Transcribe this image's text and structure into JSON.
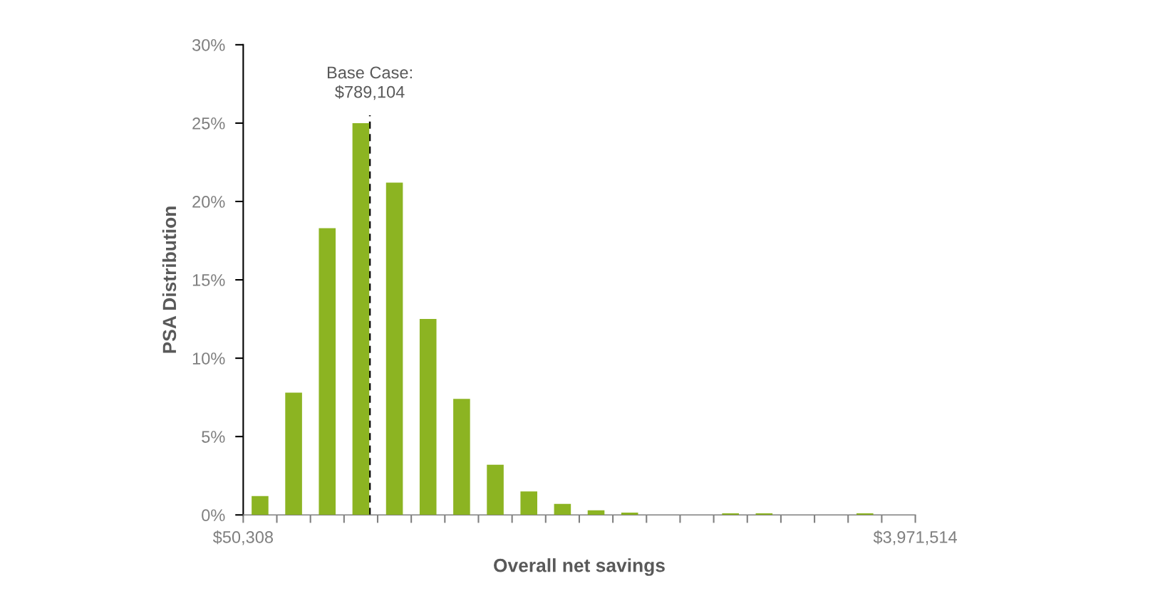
{
  "chart_data": {
    "type": "histogram",
    "xlabel": "Overall net savings",
    "ylabel": "PSA Distribution",
    "bins": [
      50308,
      246368,
      442429,
      638489,
      834549,
      1030610,
      1226670,
      1422730,
      1618791,
      1814851,
      2010911,
      2206971,
      2403032,
      2599092,
      2795152,
      2991213,
      3187273,
      3383333,
      3579394,
      3775454,
      3971514
    ],
    "values": [
      1.2,
      7.8,
      18.3,
      25.0,
      21.2,
      12.5,
      7.4,
      3.2,
      1.5,
      0.7,
      0.3,
      0.15,
      0,
      0,
      0.1,
      0.1,
      0,
      0,
      0.1,
      0
    ],
    "color": "#8cb422",
    "xlim": [
      50308,
      3971514
    ],
    "xticks": [
      {
        "value": 50308,
        "label": "$50,308"
      },
      {
        "value": 246368,
        "label": null
      },
      {
        "value": 442429,
        "label": null
      },
      {
        "value": 638489,
        "label": null
      },
      {
        "value": 834549,
        "label": null
      },
      {
        "value": 1030610,
        "label": null
      },
      {
        "value": 1226670,
        "label": null
      },
      {
        "value": 1422730,
        "label": null
      },
      {
        "value": 1618791,
        "label": null
      },
      {
        "value": 1814851,
        "label": null
      },
      {
        "value": 2010911,
        "label": null
      },
      {
        "value": 2206971,
        "label": null
      },
      {
        "value": 2403032,
        "label": null
      },
      {
        "value": 2599092,
        "label": null
      },
      {
        "value": 2795152,
        "label": null
      },
      {
        "value": 2991213,
        "label": null
      },
      {
        "value": 3187273,
        "label": null
      },
      {
        "value": 3383333,
        "label": null
      },
      {
        "value": 3579394,
        "label": null
      },
      {
        "value": 3775454,
        "label": null
      },
      {
        "value": 3971514,
        "label": "$3,971,514"
      }
    ],
    "ylim": [
      0,
      30
    ],
    "yticks": [
      {
        "value": 0,
        "label": "0%"
      },
      {
        "value": 5,
        "label": "5%"
      },
      {
        "value": 10,
        "label": "10%"
      },
      {
        "value": 15,
        "label": "15%"
      },
      {
        "value": 20,
        "label": "20%"
      },
      {
        "value": 25,
        "label": "25%"
      },
      {
        "value": 30,
        "label": "30%"
      }
    ],
    "ref_lines": [
      {
        "axis": "x",
        "value": 789104,
        "label": "Base Case:\n$789,104",
        "color": "#000000",
        "line_style": "dashed"
      }
    ],
    "grid": false,
    "legend": false
  }
}
